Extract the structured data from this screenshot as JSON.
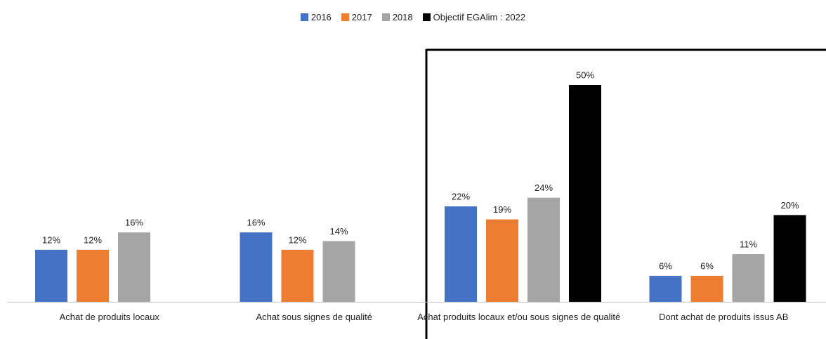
{
  "chart_data": {
    "type": "bar",
    "categories": [
      "Achat de produits locaux",
      "Achat sous signes de qualité",
      "Achat produits locaux et/ou sous signes de qualité",
      "Dont achat de produits issus AB"
    ],
    "series": [
      {
        "name": "2016",
        "color": "#4472c4",
        "values": [
          12,
          16,
          22,
          6
        ],
        "value_labels": [
          "12%",
          "16%",
          "22%",
          "6%"
        ]
      },
      {
        "name": "2017",
        "color": "#ed7d31",
        "values": [
          12,
          12,
          19,
          6
        ],
        "value_labels": [
          "12%",
          "12%",
          "19%",
          "6%"
        ]
      },
      {
        "name": "2018",
        "color": "#a5a5a5",
        "values": [
          16,
          14,
          24,
          11
        ],
        "value_labels": [
          "16%",
          "14%",
          "24%",
          "11%"
        ]
      },
      {
        "name": "Objectif EGAlim : 2022",
        "color": "#000000",
        "values": [
          null,
          null,
          50,
          20
        ],
        "value_labels": [
          null,
          null,
          "50%",
          "20%"
        ]
      }
    ]
  }
}
